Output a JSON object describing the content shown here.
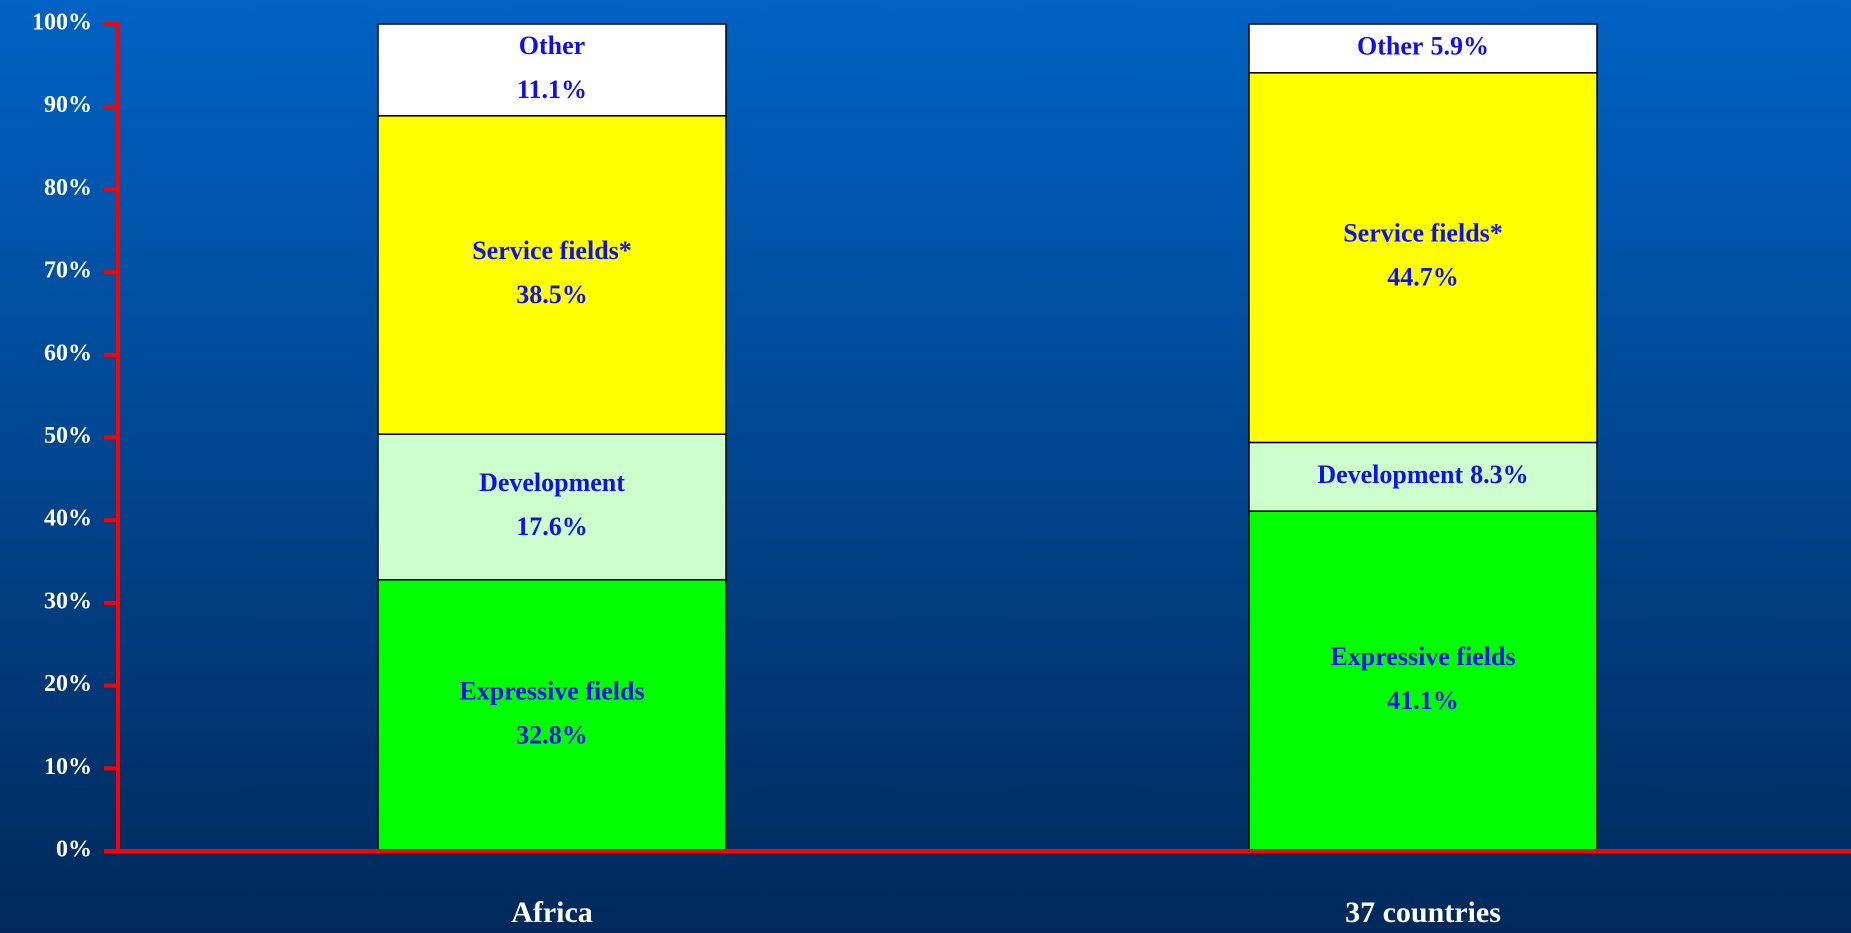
{
  "chart_data": {
    "type": "stacked_bar",
    "categories": [
      "Africa",
      "37 countries"
    ],
    "series": [
      {
        "name": "Expressive fields",
        "color": "#00ff00",
        "values": [
          32.8,
          41.1
        ],
        "value_labels": [
          "32.8%",
          "41.1%"
        ]
      },
      {
        "name": "Development",
        "color": "#ccffcc",
        "values": [
          17.6,
          8.3
        ],
        "value_labels": [
          "17.6%",
          "8.3%"
        ]
      },
      {
        "name": "Service fields*",
        "color": "#ffff00",
        "values": [
          38.5,
          44.7
        ],
        "value_labels": [
          "38.5%",
          "44.7%"
        ]
      },
      {
        "name": "Other",
        "color": "#ffffff",
        "values": [
          11.1,
          5.9
        ],
        "value_labels": [
          "11.1%",
          "5.9%"
        ]
      }
    ],
    "ylim": [
      0,
      100
    ],
    "yticks": [
      {
        "value": 0,
        "label": "0%"
      },
      {
        "value": 10,
        "label": "10%"
      },
      {
        "value": 20,
        "label": "20%"
      },
      {
        "value": 30,
        "label": "30%"
      },
      {
        "value": 40,
        "label": "40%"
      },
      {
        "value": 50,
        "label": "50%"
      },
      {
        "value": 60,
        "label": "60%"
      },
      {
        "value": 70,
        "label": "70%"
      },
      {
        "value": 80,
        "label": "80%"
      },
      {
        "value": 90,
        "label": "90%"
      },
      {
        "value": 100,
        "label": "100%"
      }
    ]
  }
}
